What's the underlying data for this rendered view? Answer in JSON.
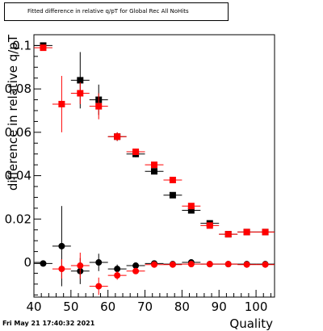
{
  "title": "Fitted difference in relative q/pT for Global Rec All NoHits",
  "timestamp": "Fri May 21 17:40:32 2021",
  "chart_data": {
    "type": "scatter",
    "xlabel": "Quality",
    "ylabel": "difference in relative q/pT",
    "xlim": [
      40,
      105
    ],
    "ylim": [
      -0.016,
      0.105
    ],
    "x_ticks": [
      40,
      50,
      60,
      70,
      80,
      90,
      100
    ],
    "x_tick_labels": [
      "40",
      "50",
      "60",
      "70",
      "80",
      "90",
      "100"
    ],
    "y_ticks": [
      0,
      0.02,
      0.04,
      0.06,
      0.08,
      0.1
    ],
    "y_tick_labels": [
      "0",
      "0.02",
      "0.04",
      "0.06",
      "0.08",
      "0.1"
    ],
    "grid": false,
    "series": [
      {
        "marker": "square",
        "color": "#000000",
        "x": [
          42.5,
          52.5,
          57.5,
          62.5,
          67.5,
          72.5,
          77.5,
          82.5,
          87.5,
          92.5,
          97.5,
          102.5
        ],
        "y": [
          0.1,
          0.084,
          0.075,
          0.058,
          0.05,
          0.042,
          0.031,
          0.024,
          0.018,
          0.013,
          0.014,
          0.014
        ],
        "yerr": [
          0.001,
          0.013,
          0.007,
          0.002,
          0.0015,
          0.001,
          0.001,
          0.001,
          0.0008,
          0.0008,
          0.0008,
          0.0008
        ]
      },
      {
        "marker": "square",
        "color": "#ff0000",
        "x": [
          42.5,
          47.5,
          52.5,
          57.5,
          62.5,
          67.5,
          72.5,
          77.5,
          82.5,
          87.5,
          92.5,
          97.5,
          102.5
        ],
        "y": [
          0.099,
          0.073,
          0.078,
          0.072,
          0.058,
          0.051,
          0.045,
          0.038,
          0.026,
          0.017,
          0.013,
          0.014,
          0.014
        ],
        "yerr": [
          0.001,
          0.013,
          0.005,
          0.006,
          0.002,
          0.0015,
          0.001,
          0.001,
          0.001,
          0.0008,
          0.0008,
          0.0008,
          0.0008
        ]
      },
      {
        "marker": "circle",
        "color": "#000000",
        "x": [
          42.5,
          47.5,
          52.5,
          57.5,
          62.5,
          67.5,
          72.5,
          77.5,
          82.5,
          87.5,
          92.5,
          97.5,
          102.5
        ],
        "y": [
          -0.0005,
          0.0075,
          -0.004,
          0.0,
          -0.003,
          -0.0015,
          -0.0005,
          -0.0008,
          0.0,
          -0.0008,
          -0.0008,
          -0.0008,
          -0.0008
        ],
        "yerr": [
          0.0005,
          0.0185,
          0.006,
          0.004,
          0.002,
          0.001,
          0.0008,
          0.0006,
          0.0006,
          0.0006,
          0.0006,
          0.0006,
          0.0006
        ]
      },
      {
        "marker": "circle",
        "color": "#ff0000",
        "x": [
          47.5,
          52.5,
          57.5,
          62.5,
          67.5,
          72.5,
          77.5,
          82.5,
          87.5,
          92.5,
          97.5,
          102.5
        ],
        "y": [
          -0.003,
          -0.0015,
          -0.011,
          -0.006,
          -0.004,
          -0.001,
          -0.001,
          -0.0008,
          -0.0008,
          -0.0008,
          -0.001,
          -0.001
        ],
        "yerr": [
          0.0045,
          0.006,
          0.004,
          0.002,
          0.0012,
          0.0008,
          0.0006,
          0.0006,
          0.0006,
          0.0006,
          0.0006,
          0.0006
        ]
      }
    ]
  }
}
